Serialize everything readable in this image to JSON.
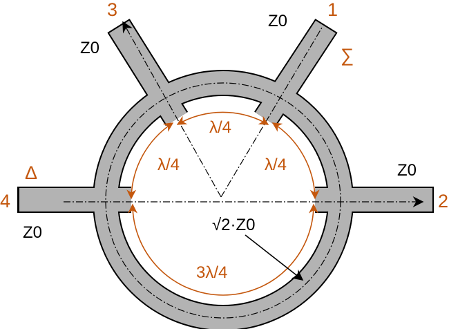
{
  "colors": {
    "accent": "#c4570d",
    "line_fill": "#b3b3b3",
    "outline": "#000000"
  },
  "ports": {
    "p1": "1",
    "p2": "2",
    "p3": "3",
    "p4": "4"
  },
  "impedance": {
    "z_p1": "Z0",
    "z_p2": "Z0",
    "z_p3": "Z0",
    "z_p4": "Z0",
    "ring": "√2·Z0"
  },
  "symbols": {
    "sum": "∑",
    "delta": "Δ"
  },
  "arcs": {
    "top": "λ/4",
    "left": "λ/4",
    "right": "λ/4",
    "bottom": "3λ/4"
  }
}
